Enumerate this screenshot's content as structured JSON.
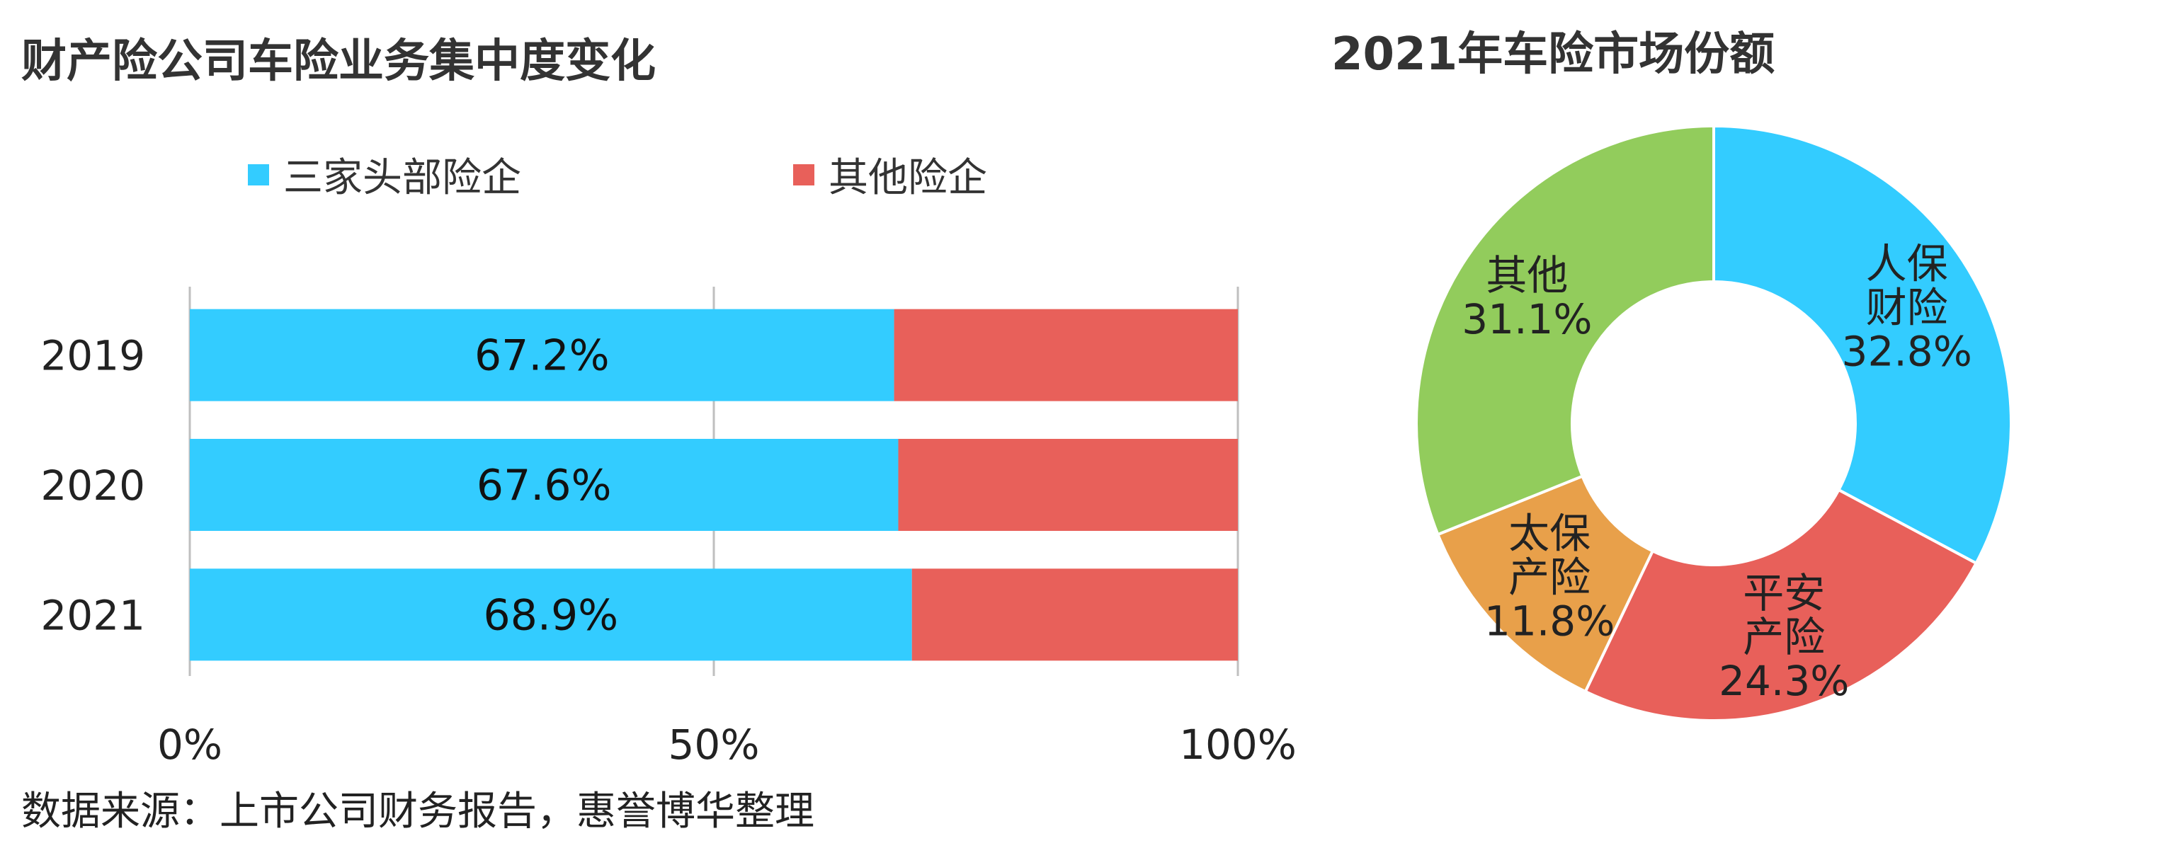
{
  "chart_data": [
    {
      "type": "bar",
      "orientation": "horizontal",
      "stacked": true,
      "title": "财产险公司车险业务集中度变化",
      "categories": [
        "2019",
        "2020",
        "2021"
      ],
      "series": [
        {
          "name": "三家头部险企",
          "values": [
            67.2,
            67.6,
            68.9
          ],
          "labels": [
            "67.2%",
            "67.6%",
            "68.9%"
          ],
          "color": "#33CCFF"
        },
        {
          "name": "其他险企",
          "values": [
            32.8,
            32.4,
            31.1
          ],
          "color": "#E8605A"
        }
      ],
      "xlim": [
        0,
        100
      ],
      "xticks": [
        "0%",
        "50%",
        "100%"
      ],
      "grid": true,
      "legend": "top"
    },
    {
      "type": "pie",
      "donut": true,
      "title": "2021年车险市场份额",
      "slices": [
        {
          "name": "人保财险",
          "name_lines": [
            "人保",
            "财险"
          ],
          "value": 32.8,
          "label": "32.8%",
          "color": "#33CCFF"
        },
        {
          "name": "平安产险",
          "name_lines": [
            "平安",
            "产险"
          ],
          "value": 24.3,
          "label": "24.3%",
          "color": "#E8605A"
        },
        {
          "name": "太保产险",
          "name_lines": [
            "太保",
            "产险"
          ],
          "value": 11.8,
          "label": "11.8%",
          "color": "#E8A04A"
        },
        {
          "name": "其他",
          "name_lines": [
            "其他"
          ],
          "value": 31.1,
          "label": "31.1%",
          "color": "#92CC5C"
        }
      ]
    }
  ],
  "source": "数据来源：上市公司财务报告，惠誉博华整理"
}
